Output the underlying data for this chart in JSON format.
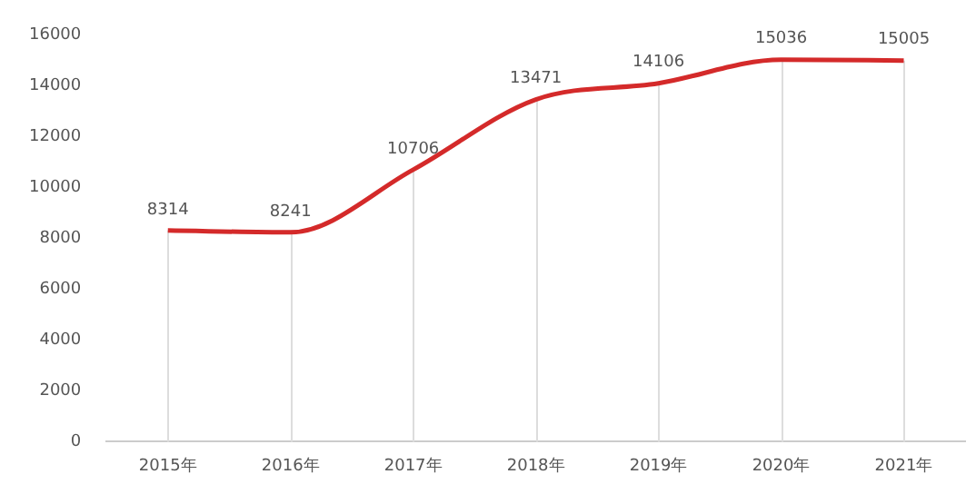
{
  "chart_data": {
    "type": "line",
    "categories": [
      "2015年",
      "2016年",
      "2017年",
      "2018年",
      "2019年",
      "2020年",
      "2021年"
    ],
    "series": [
      {
        "color": "#d42a2a",
        "values": [
          8314,
          8241,
          10706,
          13471,
          14106,
          15036,
          15005
        ]
      }
    ],
    "ylim": [
      0,
      16000
    ],
    "yticks": [
      0,
      2000,
      4000,
      6000,
      8000,
      10000,
      12000,
      14000,
      16000
    ],
    "grid": "x",
    "legend": false,
    "marker": "none",
    "data_labels": true
  }
}
